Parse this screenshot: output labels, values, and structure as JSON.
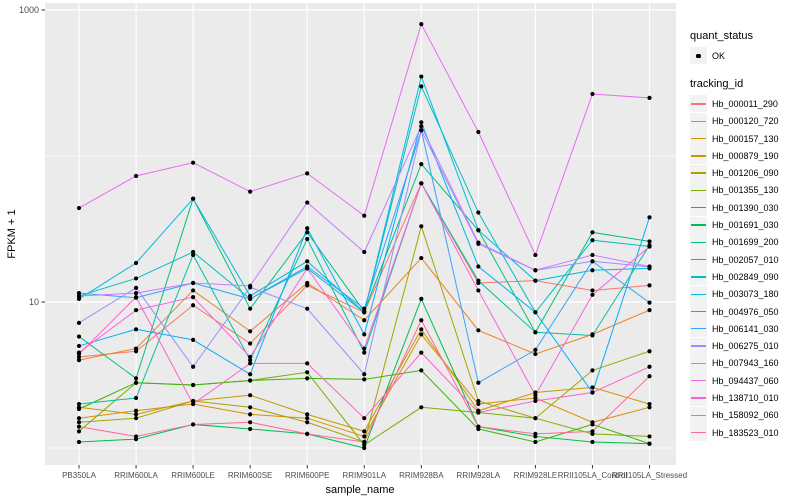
{
  "chart_data": {
    "type": "line",
    "title": "",
    "xlabel": "sample_name",
    "ylabel": "FPKM + 1",
    "y_scale": "log10",
    "grid": true,
    "legend_position": "right",
    "y_axis": {
      "ticks": [
        {
          "value": 10,
          "label": "10"
        },
        {
          "value": 1000,
          "label": "1000"
        }
      ],
      "minor_gridlines": [
        1,
        100
      ],
      "ylim": [
        0.8,
        1100
      ]
    },
    "categories": [
      "PB350LA",
      "RRIM600LA",
      "RRIM600LE",
      "RRIM600SE",
      "RRIM600PE",
      "RRIM901LA",
      "RRIM928BA",
      "RRIM928LA",
      "RRIM928LE",
      "RRII105LA_Control",
      "RRII105LA_Stressed"
    ],
    "series": [
      {
        "name": "Hb_000011_290",
        "color": "#F8766D",
        "values": [
          4.2,
          4.6,
          9.5,
          5.2,
          13,
          8.5,
          65,
          13.5,
          14,
          12,
          13
        ]
      },
      {
        "name": "Hb_000120_720",
        "color": "#E88526",
        "values": [
          4.0,
          4.8,
          12,
          6.3,
          13.5,
          7.5,
          20,
          6.4,
          4.4,
          6.0,
          8.8
        ]
      },
      {
        "name": "Hb_000157_130",
        "color": "#D89000",
        "values": [
          1.6,
          1.8,
          2.0,
          1.7,
          1.6,
          1.2,
          6.0,
          2.0,
          2.2,
          1.5,
          1.9
        ]
      },
      {
        "name": "Hb_000879_190",
        "color": "#C49A00",
        "values": [
          1.9,
          1.7,
          2.1,
          2.3,
          1.7,
          1.3,
          6.5,
          1.8,
          2.4,
          2.6,
          2.0
        ]
      },
      {
        "name": "Hb_001206_090",
        "color": "#A3A500",
        "values": [
          1.5,
          1.6,
          2.1,
          1.9,
          1.5,
          1.1,
          33,
          2.1,
          1.6,
          3.4,
          4.6
        ]
      },
      {
        "name": "Hb_001355_130",
        "color": "#7CAE00",
        "values": [
          1.3,
          2.8,
          2.7,
          2.9,
          3.3,
          1.05,
          1.9,
          1.75,
          1.6,
          1.25,
          1.2
        ]
      },
      {
        "name": "Hb_001390_030",
        "color": "#39B600",
        "values": [
          1.85,
          2.8,
          2.7,
          2.9,
          3.0,
          2.95,
          3.4,
          1.35,
          1.1,
          1.45,
          1.07
        ]
      },
      {
        "name": "Hb_001691_030",
        "color": "#00BB4E",
        "values": [
          1.1,
          1.15,
          1.45,
          1.35,
          1.25,
          1.0,
          10.5,
          1.4,
          1.2,
          1.1,
          1.07
        ]
      },
      {
        "name": "Hb_001699_200",
        "color": "#00BF7D",
        "values": [
          5.8,
          3.0,
          51,
          9.0,
          30,
          8.6,
          88,
          31,
          6.2,
          30,
          26
        ]
      },
      {
        "name": "Hb_002057_010",
        "color": "#00C1A3",
        "values": [
          2.0,
          2.2,
          21,
          4.0,
          27,
          4.5,
          65,
          14,
          6.2,
          5.9,
          24.5
        ]
      },
      {
        "name": "Hb_002849_090",
        "color": "#00BFC4",
        "values": [
          11,
          14.5,
          22,
          10.5,
          17,
          8.5,
          300,
          41,
          8.5,
          26.5,
          24
        ]
      },
      {
        "name": "Hb_003073_180",
        "color": "#00BAE0",
        "values": [
          10.5,
          18.5,
          51,
          11,
          19,
          8.5,
          350,
          31,
          14,
          16.5,
          17
        ]
      },
      {
        "name": "Hb_004976_050",
        "color": "#00B0F6",
        "values": [
          5.0,
          6.5,
          5.5,
          3.2,
          32,
          6.0,
          170,
          17.5,
          8.5,
          2.4,
          38
        ]
      },
      {
        "name": "Hb_006141_030",
        "color": "#35A2FF",
        "values": [
          11.5,
          10.7,
          13.5,
          10.5,
          17.5,
          9.0,
          150,
          2.8,
          4.7,
          19,
          9.9
        ]
      },
      {
        "name": "Hb_006275_010",
        "color": "#9590FF",
        "values": [
          7.2,
          12.5,
          3.6,
          12.6,
          9.0,
          3.2,
          150,
          25,
          16.5,
          19,
          17.4
        ]
      },
      {
        "name": "Hb_007943_160",
        "color": "#C77CFF",
        "values": [
          11,
          11.5,
          13.5,
          12.9,
          48,
          22,
          160,
          25.5,
          16.5,
          21,
          17.5
        ]
      },
      {
        "name": "Hb_094437_060",
        "color": "#E76BF3",
        "values": [
          44,
          73,
          90,
          57,
          76,
          39,
          800,
          146,
          21,
          266,
          250
        ]
      },
      {
        "name": "Hb_138710_010",
        "color": "#FA62DB",
        "values": [
          4.5,
          8.8,
          10.8,
          4.2,
          17,
          4.8,
          65,
          12,
          2.3,
          11.2,
          24
        ]
      },
      {
        "name": "Hb_158092_060",
        "color": "#FF61CC",
        "values": [
          4.4,
          10.8,
          2.0,
          3.8,
          3.8,
          1.6,
          4.5,
          1.75,
          2.1,
          2.4,
          3.6
        ]
      },
      {
        "name": "Hb_183523_010",
        "color": "#FF6A98",
        "values": [
          1.4,
          1.2,
          1.45,
          1.5,
          1.25,
          1.1,
          7.5,
          1.4,
          1.25,
          1.3,
          3.1
        ]
      }
    ],
    "legend": {
      "quant_status": {
        "title": "quant_status",
        "items": [
          {
            "label": "OK",
            "symbol": "black-point"
          }
        ]
      },
      "tracking_id": {
        "title": "tracking_id"
      }
    },
    "style": {
      "panel_bg": "#EBEBEB",
      "gridline": "#FFFFFF",
      "tick_text": "#4D4D4D",
      "point_color": "#000000",
      "legend_key_bg": "#F2F2F2"
    }
  }
}
